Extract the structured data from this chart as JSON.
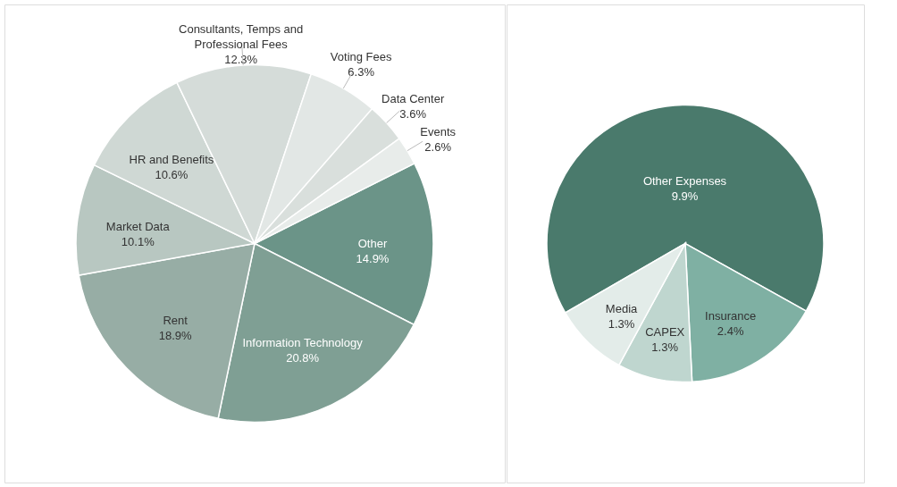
{
  "chart_data": [
    {
      "type": "pie",
      "categories": [
        "Other",
        "Information Technology",
        "Rent",
        "Market Data",
        "HR and Benefits",
        "Consultants, Temps and Professional Fees",
        "Voting Fees",
        "Data Center",
        "Events"
      ],
      "values": [
        14.9,
        20.8,
        18.9,
        10.1,
        10.6,
        12.3,
        6.3,
        3.6,
        2.6
      ],
      "value_labels": [
        "14.9%",
        "20.8%",
        "18.9%",
        "10.1%",
        "10.6%",
        "12.3%",
        "6.3%",
        "3.6%",
        "2.6%"
      ],
      "colors": [
        "#6b9488",
        "#7f9f94",
        "#97ada5",
        "#b8c7c1",
        "#cfd8d4",
        "#d5dcd9",
        "#e2e7e5",
        "#d9dfdc",
        "#e8ecea"
      ]
    },
    {
      "type": "pie",
      "categories": [
        "Other Expenses",
        "Insurance",
        "CAPEX",
        "Media"
      ],
      "values": [
        9.9,
        2.4,
        1.3,
        1.3
      ],
      "value_labels": [
        "9.9%",
        "2.4%",
        "1.3%",
        "1.3%"
      ],
      "colors": [
        "#4a7a6c",
        "#7fb0a3",
        "#bfd6cf",
        "#e3ece9"
      ]
    }
  ]
}
